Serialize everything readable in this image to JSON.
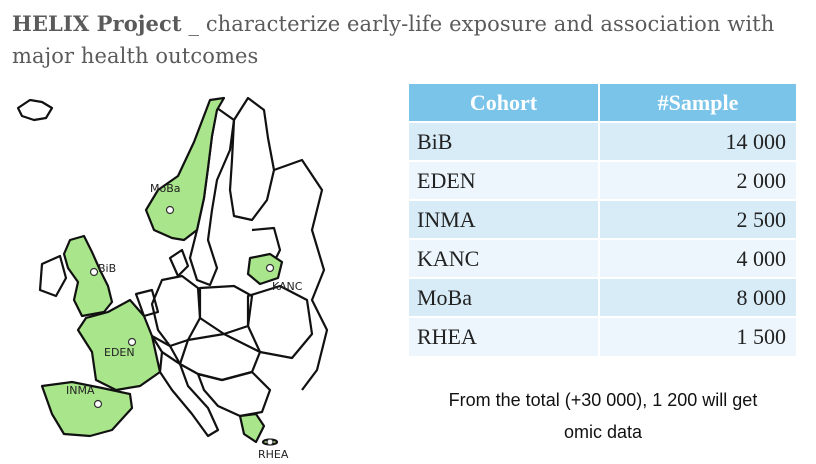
{
  "title": {
    "project": "HELIX Project",
    "subtitle": "_ characterize early-life exposure and association with major health outcomes"
  },
  "map": {
    "highlight_color": "#a9e58a",
    "labels": {
      "moba": "MoBa",
      "bib": "BiB",
      "kanc": "KANC",
      "eden": "EDEN",
      "inma": "INMA",
      "rhea": "RHEA"
    }
  },
  "table": {
    "header_color": "#7ac4ea",
    "headers": [
      "Cohort",
      "#Sample"
    ],
    "rows": [
      {
        "cohort": "BiB",
        "sample": "14 000"
      },
      {
        "cohort": "EDEN",
        "sample": "2 000"
      },
      {
        "cohort": "INMA",
        "sample": "2 500"
      },
      {
        "cohort": "KANC",
        "sample": "4 000"
      },
      {
        "cohort": "MoBa",
        "sample": "8 000"
      },
      {
        "cohort": "RHEA",
        "sample": "1 500"
      }
    ]
  },
  "note": {
    "line1": "From the total (+30 000), 1 200 will get",
    "line2": "omic data"
  }
}
